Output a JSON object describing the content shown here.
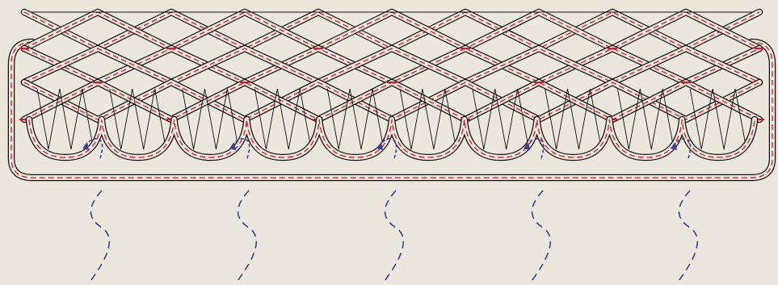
{
  "colors": {
    "background": "#ece7dc",
    "outline": "#111111",
    "center_dash": "#e0142c",
    "flow_dash": "#3a3f9e"
  },
  "diagram": {
    "lattice_rows": 3,
    "lattice_columns": 10,
    "scallops": 10,
    "hatched_scallops": 10,
    "flow_lines": 5,
    "return_arrows": 5
  }
}
